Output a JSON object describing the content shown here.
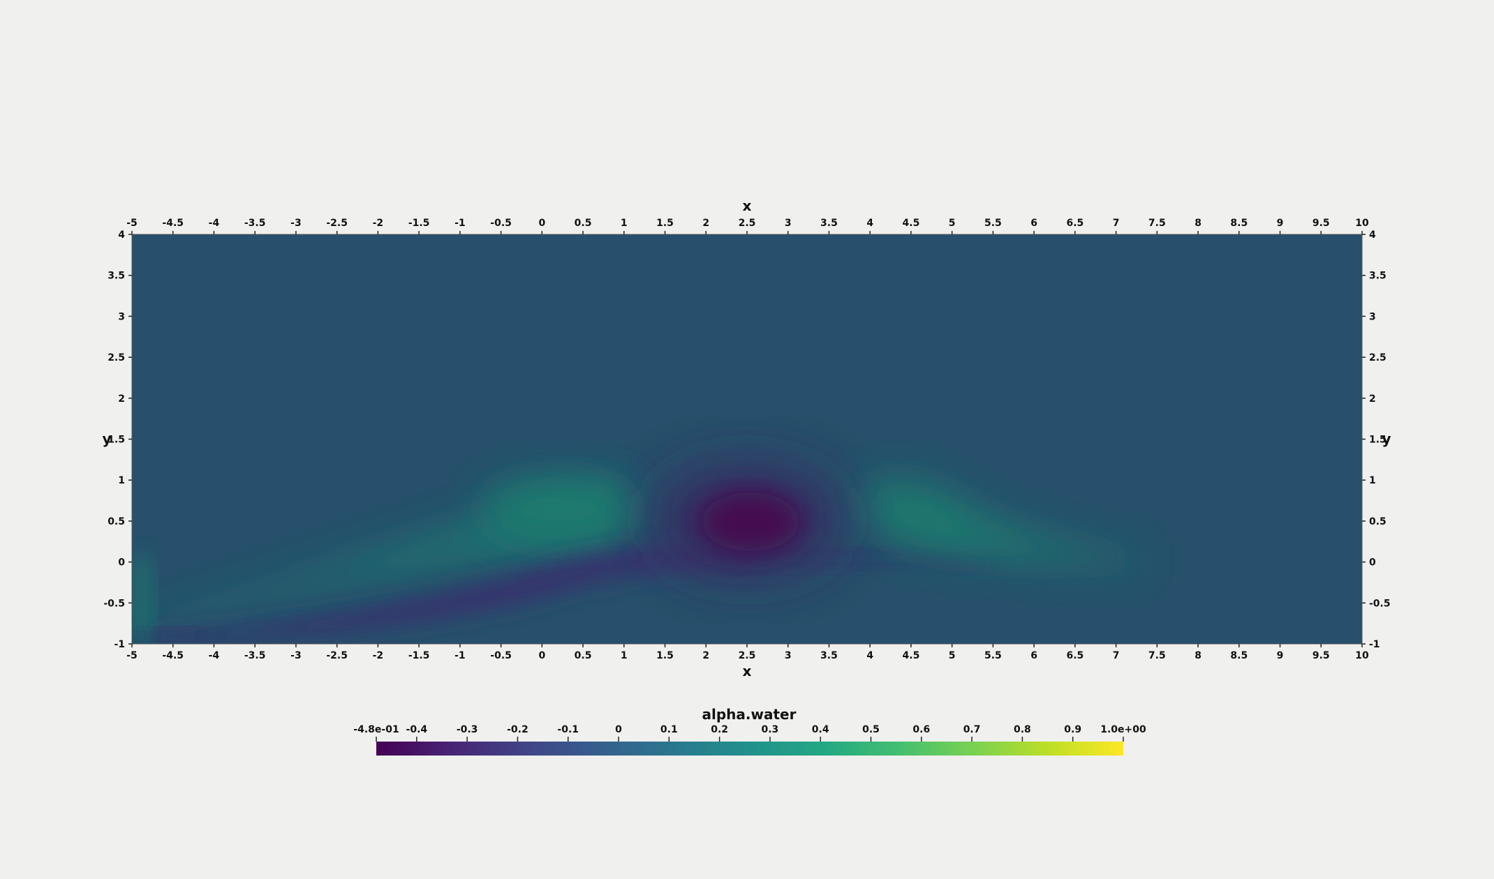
{
  "chart_data": {
    "type": "heatmap",
    "title": "",
    "field_name": "alpha.water",
    "x_axis": {
      "label": "x",
      "range": [
        -5,
        10
      ],
      "ticks": [
        "-5",
        "-4.5",
        "-4",
        "-3.5",
        "-3",
        "-2.5",
        "-2",
        "-1.5",
        "-1",
        "-0.5",
        "0",
        "0.5",
        "1",
        "1.5",
        "2",
        "2.5",
        "3",
        "3.5",
        "4",
        "4.5",
        "5",
        "5.5",
        "6",
        "6.5",
        "7",
        "7.5",
        "8",
        "8.5",
        "9",
        "9.5",
        "10"
      ]
    },
    "y_axis": {
      "label": "y",
      "range": [
        -1,
        4
      ],
      "ticks": [
        "-1",
        "-0.5",
        "0",
        "0.5",
        "1",
        "1.5",
        "2",
        "2.5",
        "3",
        "3.5",
        "4"
      ]
    },
    "colorbar": {
      "colormap": "viridis",
      "range": [
        -0.48,
        1.0
      ],
      "tick_labels": [
        "-4.8e-01",
        "-0.4",
        "-0.3",
        "-0.2",
        "-0.1",
        "0",
        "0.1",
        "0.2",
        "0.3",
        "0.4",
        "0.5",
        "0.6",
        "0.7",
        "0.8",
        "0.9",
        "1.0e+00"
      ],
      "tick_values": [
        -0.48,
        -0.4,
        -0.3,
        -0.2,
        -0.1,
        0,
        0.1,
        0.2,
        0.3,
        0.4,
        0.5,
        0.6,
        0.7,
        0.8,
        0.9,
        1.0
      ],
      "orientation": "horizontal"
    },
    "background_value": 0.0,
    "features": [
      {
        "kind": "trough",
        "x_center": 2.5,
        "y_center": 0.5,
        "value": -0.48
      },
      {
        "kind": "crest",
        "x_center": 0.3,
        "y_center": 0.75,
        "value": 0.25
      },
      {
        "kind": "crest",
        "x_center": 4.6,
        "y_center": 0.75,
        "value": 0.25
      },
      {
        "kind": "band",
        "from": [
          -5,
          -0.6
        ],
        "to": [
          1.5,
          0.5
        ],
        "value": 0.2
      },
      {
        "kind": "band",
        "from": [
          -4.8,
          -0.9
        ],
        "to": [
          2.5,
          0.05
        ],
        "value": -0.2
      },
      {
        "kind": "band",
        "from": [
          4.5,
          0.4
        ],
        "to": [
          8,
          0.0
        ],
        "value": 0.12
      }
    ]
  }
}
